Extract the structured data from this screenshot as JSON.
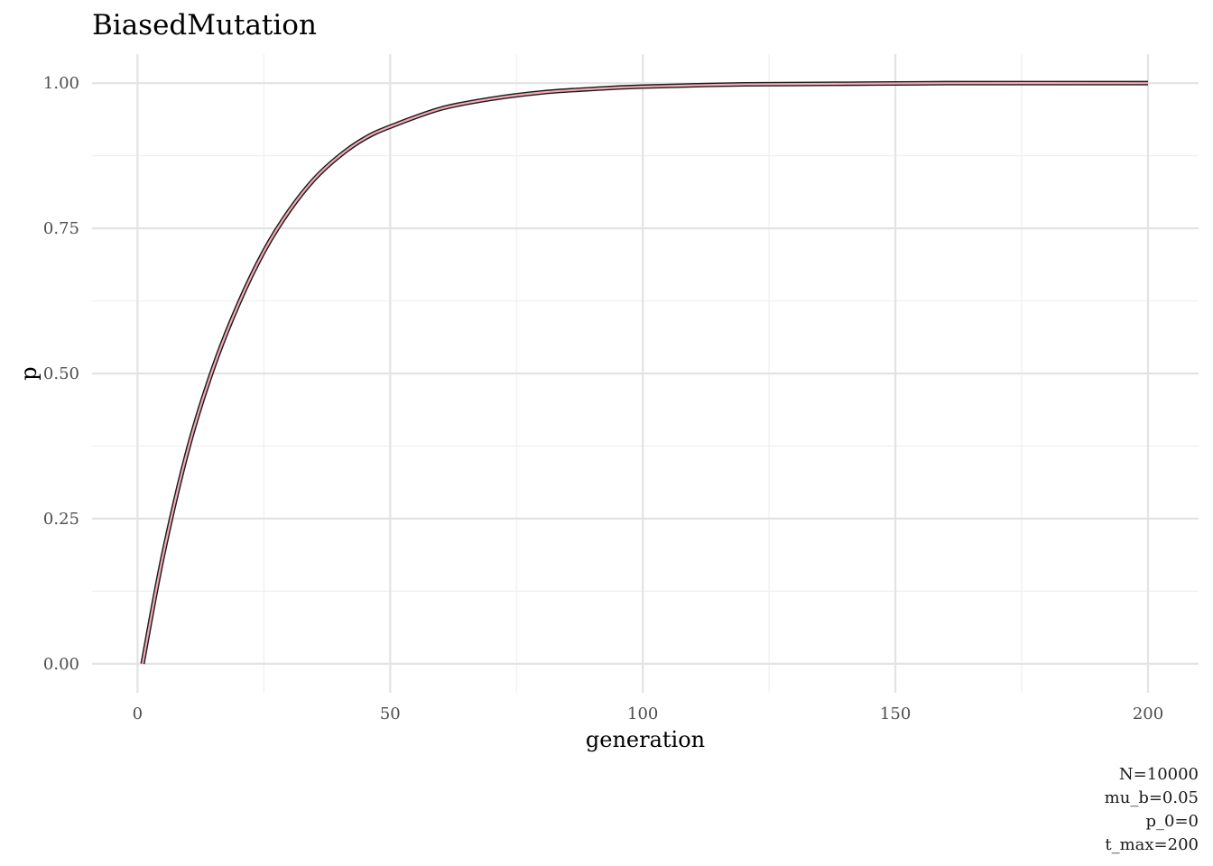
{
  "chart_data": {
    "type": "line",
    "title": "BiasedMutation",
    "xlabel": "generation",
    "ylabel": "p",
    "xlim": [
      -9,
      210
    ],
    "ylim": [
      -0.05,
      1.05
    ],
    "x_ticks": [
      0,
      50,
      100,
      150,
      200
    ],
    "x_tick_labels": [
      "0",
      "50",
      "100",
      "150",
      "200"
    ],
    "y_ticks": [
      0,
      0.25,
      0.5,
      0.75,
      1
    ],
    "y_tick_labels": [
      "0.00",
      "0.25",
      "0.50",
      "0.75",
      "1.00"
    ],
    "grid": true,
    "caption_lines": [
      "N=10000",
      "mu_b=0.05",
      "p_0=0",
      "t_max=200"
    ],
    "series": [
      {
        "color": "#1a1a1a",
        "x": [
          1,
          5,
          10,
          15,
          20,
          25,
          30,
          35,
          40,
          45,
          50,
          60,
          70,
          80,
          90,
          100,
          120,
          140,
          160,
          200
        ],
        "y": [
          0.0,
          0.185,
          0.37,
          0.51,
          0.62,
          0.71,
          0.78,
          0.835,
          0.875,
          0.905,
          0.925,
          0.956,
          0.973,
          0.984,
          0.99,
          0.994,
          0.998,
          0.999,
          1.0,
          1.0
        ]
      },
      {
        "color": "#f4a9b4",
        "x": [
          1,
          5,
          10,
          15,
          20,
          25,
          30,
          35,
          40,
          45,
          50,
          60,
          70,
          80,
          90,
          100,
          120,
          140,
          160,
          200
        ],
        "y": [
          0.0,
          0.185,
          0.37,
          0.51,
          0.62,
          0.71,
          0.78,
          0.835,
          0.875,
          0.905,
          0.925,
          0.956,
          0.973,
          0.984,
          0.99,
          0.994,
          0.998,
          0.999,
          1.0,
          1.0
        ]
      }
    ]
  }
}
